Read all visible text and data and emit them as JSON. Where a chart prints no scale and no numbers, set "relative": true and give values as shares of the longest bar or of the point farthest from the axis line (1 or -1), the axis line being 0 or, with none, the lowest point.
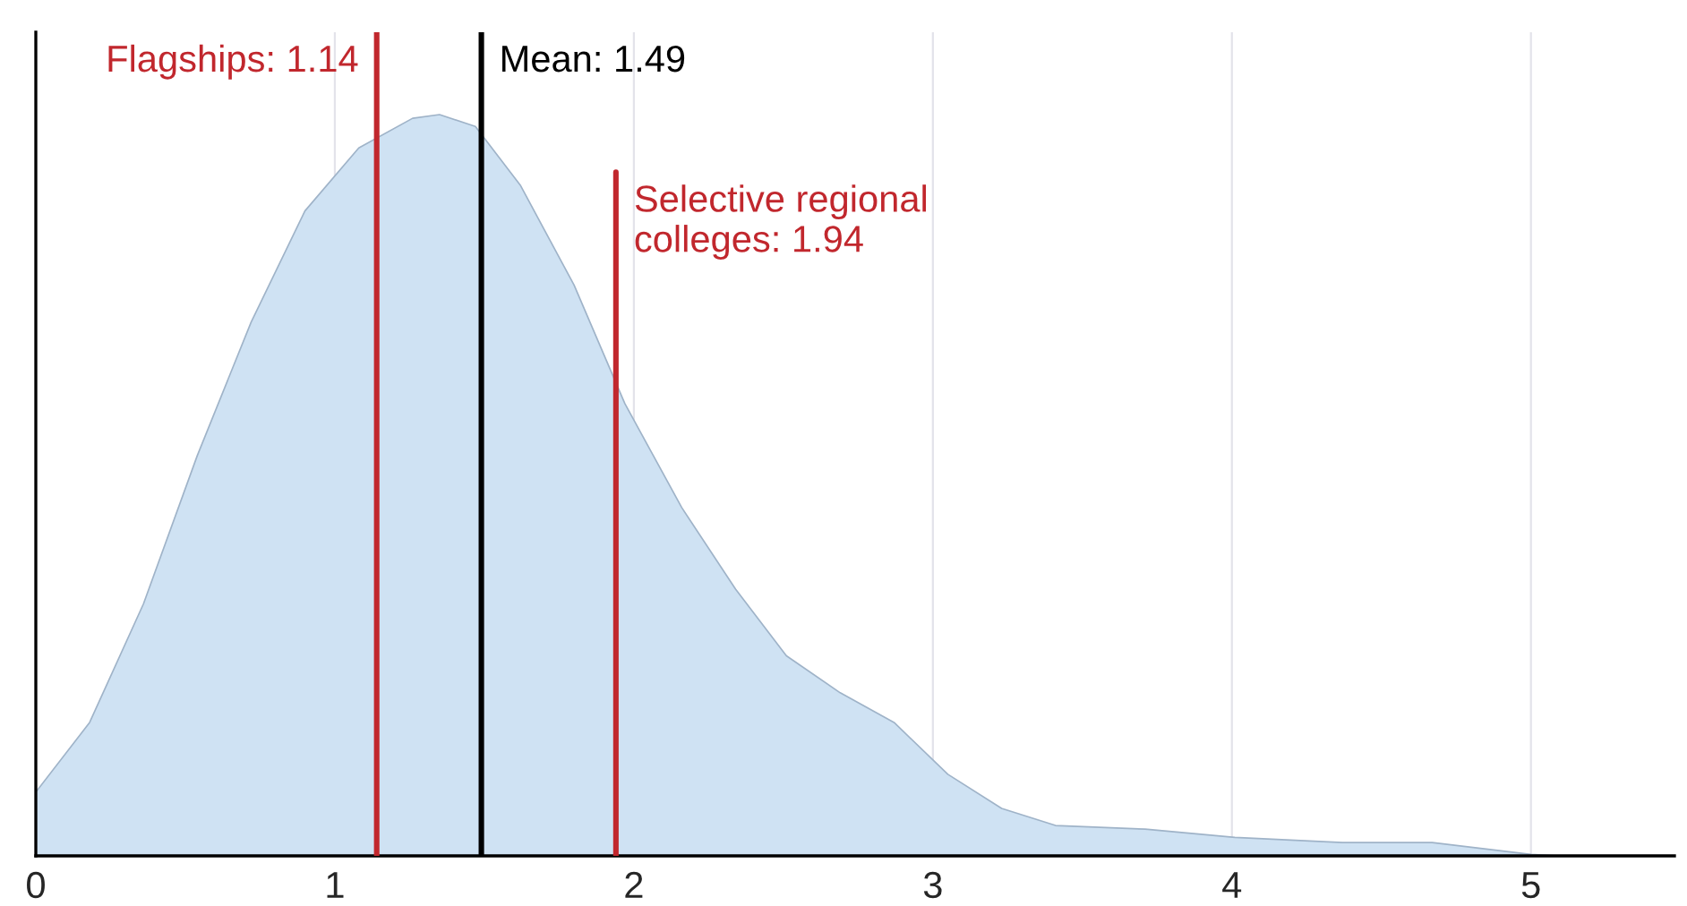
{
  "chart_data": {
    "type": "area",
    "relative": true,
    "x": [
      0,
      0.18,
      0.36,
      0.54,
      0.72,
      0.9,
      1.08,
      1.26,
      1.35,
      1.47,
      1.62,
      1.8,
      1.97,
      2.16,
      2.34,
      2.51,
      2.69,
      2.87,
      3.05,
      3.23,
      3.41,
      3.71,
      4.01,
      4.37,
      4.67,
      5.0,
      5.09
    ],
    "series": [
      {
        "color": "#cfe2f3",
        "values": [
          0.086,
          0.18,
          0.34,
          0.54,
          0.72,
          0.87,
          0.955,
          0.995,
          1.0,
          0.984,
          0.905,
          0.77,
          0.61,
          0.47,
          0.36,
          0.27,
          0.22,
          0.18,
          0.11,
          0.064,
          0.041,
          0.036,
          0.025,
          0.018,
          0.018,
          0.002,
          0
        ]
      }
    ],
    "xlim": [
      0,
      5.48
    ],
    "xticks": [
      0,
      1,
      2,
      3,
      4,
      5
    ],
    "grid": "x",
    "ref_lines": [
      {
        "axis": "x",
        "value": 1.14,
        "label": "Flagships: 1.14",
        "color": "#c1272d"
      },
      {
        "axis": "x",
        "value": 1.49,
        "label": "Mean: 1.49",
        "color": "#000000"
      },
      {
        "axis": "x",
        "value": 1.94,
        "label": "Selective regional\ncolleges: 1.94",
        "color": "#c1272d"
      }
    ]
  }
}
